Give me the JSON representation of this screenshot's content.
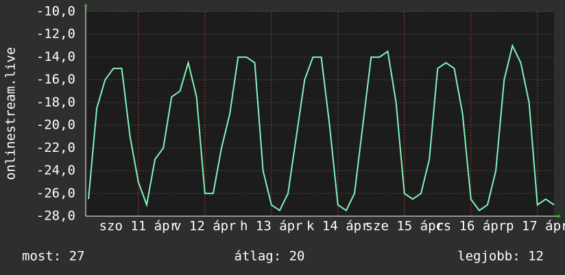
{
  "chart_data": {
    "type": "line",
    "ylabel": "onlinestream.live",
    "x": [
      -18,
      -15,
      -12,
      -9,
      -6,
      -3,
      0,
      3,
      6,
      9,
      12,
      15,
      18,
      21,
      24,
      27,
      30,
      33,
      36,
      39,
      42,
      45,
      48,
      51,
      54,
      57,
      60,
      63,
      66,
      69,
      72,
      75,
      78,
      81,
      84,
      87,
      90,
      93,
      96,
      99,
      102,
      105,
      108,
      111,
      114,
      117,
      120,
      123,
      126,
      129,
      132,
      135,
      138,
      141,
      144,
      147,
      150
    ],
    "series": [
      {
        "name": "onlinestream.live",
        "color": "#80f5bb",
        "values": [
          -26.5,
          -18.5,
          -16,
          -15,
          -15,
          -21,
          -25,
          -27,
          -23,
          -22,
          -17.5,
          -17,
          -14.5,
          -17.5,
          -26,
          -26,
          -22,
          -19,
          -14,
          -14,
          -14.5,
          -24,
          -27,
          -27.5,
          -26,
          -21,
          -16,
          -14,
          -14,
          -20,
          -27,
          -27.5,
          -26,
          -20,
          -14,
          -14,
          -13.5,
          -18,
          -26,
          -26.5,
          -26,
          -23,
          -15,
          -14.5,
          -15,
          -19,
          -26.5,
          -27.5,
          -27,
          -24,
          -16,
          -13,
          -14.5,
          -18,
          -27,
          -26.5,
          -27
        ]
      }
    ],
    "xlim": [
      -19,
      150
    ],
    "xticks": [
      {
        "value": 0,
        "label": "szo 11 ápr"
      },
      {
        "value": 24,
        "label": "v 12 ápr"
      },
      {
        "value": 48,
        "label": "h 13 ápr"
      },
      {
        "value": 72,
        "label": "k 14 ápr"
      },
      {
        "value": 96,
        "label": "sze 15 ápr"
      },
      {
        "value": 120,
        "label": "cs 16 ápr"
      },
      {
        "value": 144,
        "label": "p 17 ápr"
      }
    ],
    "ylim": [
      -28,
      -10
    ],
    "yticks": [
      {
        "value": -28,
        "label": "-28,0"
      },
      {
        "value": -26,
        "label": "-26,0"
      },
      {
        "value": -24,
        "label": "-24,0"
      },
      {
        "value": -22,
        "label": "-22,0"
      },
      {
        "value": -20,
        "label": "-20,0"
      },
      {
        "value": -18,
        "label": "-18,0"
      },
      {
        "value": -16,
        "label": "-16,0"
      },
      {
        "value": -14,
        "label": "-14,0"
      },
      {
        "value": -12,
        "label": "-12,0"
      },
      {
        "value": -10,
        "label": "-10,0"
      }
    ],
    "grid": true,
    "footer": [
      "most: 27",
      "átlag: 20",
      "legjobb: 12"
    ]
  }
}
